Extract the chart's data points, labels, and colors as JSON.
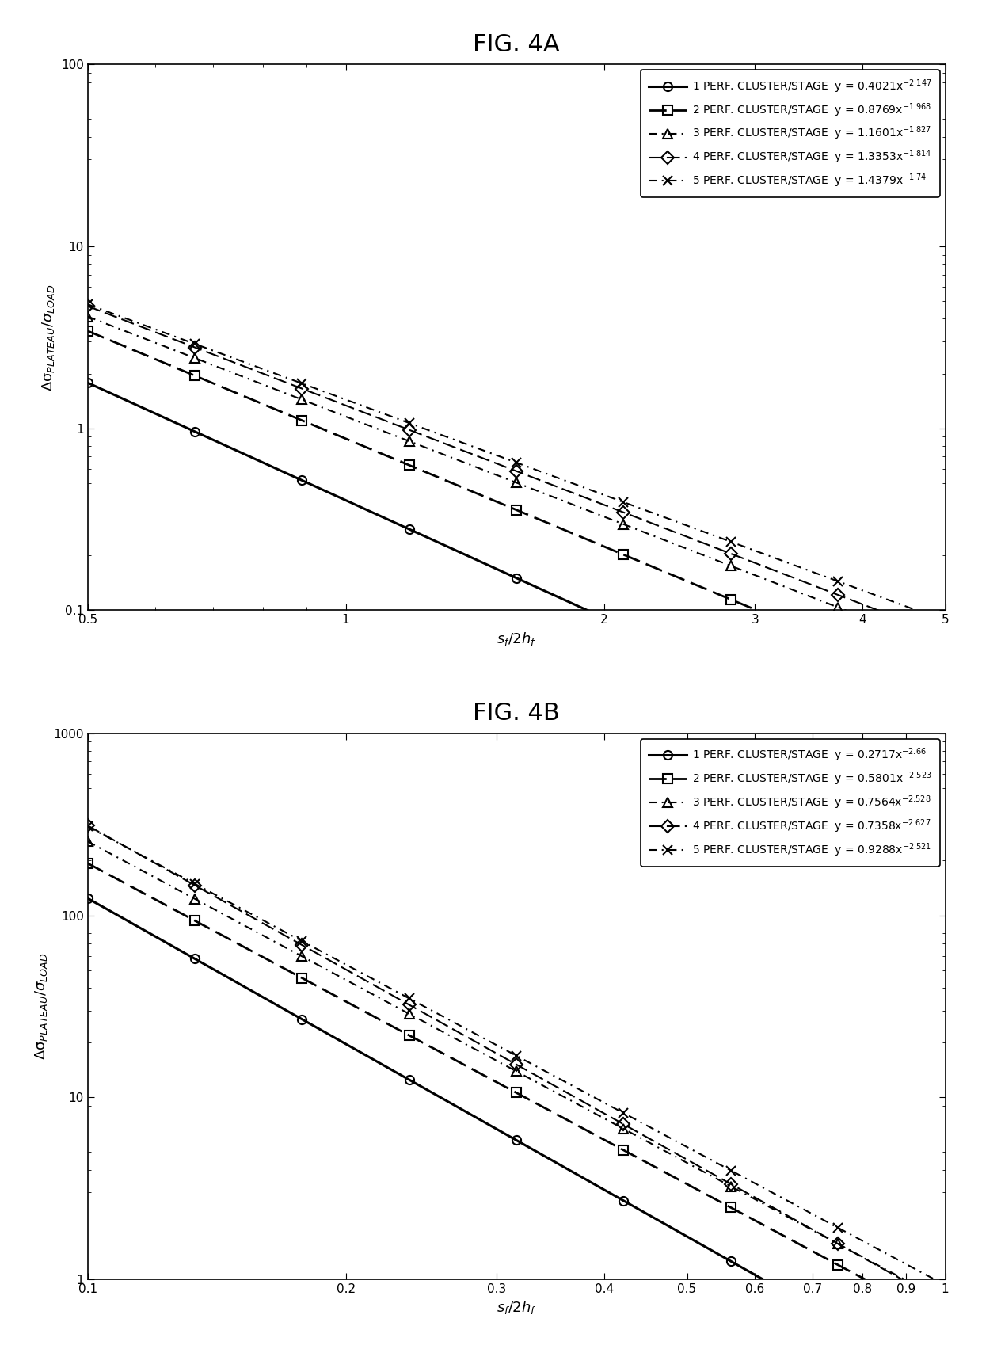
{
  "fig_title_a": "FIG. 4A",
  "fig_title_b": "FIG. 4B",
  "xlabel_a": "$s_f/2h_f$",
  "xlabel_b": "$s_f/2h_f$",
  "ylabel": "Δσ$_{PLATEAU}$/$σ$$_{LOAD}$",
  "plot_a": {
    "xmin": 0.5,
    "xmax": 5.0,
    "ymin": 0.1,
    "ymax": 100,
    "xticks": [
      0.5,
      1,
      2,
      3,
      4,
      5
    ],
    "yticks": [
      0.1,
      1,
      10,
      100
    ],
    "series": [
      {
        "label": "1 PERF. CLUSTER/STAGE",
        "eq": "y = 0.4021x",
        "exp_str": "-2.147",
        "coeff": 0.4021,
        "exp": -2.147,
        "linestyle": "solid",
        "marker": "o",
        "linewidth": 2.2,
        "dashes": []
      },
      {
        "label": "2 PERF. CLUSTER/STAGE",
        "eq": "y = 0.8769x",
        "exp_str": "-1.968",
        "coeff": 0.8769,
        "exp": -1.968,
        "linestyle": "dashed",
        "marker": "s",
        "linewidth": 2.0,
        "dashes": [
          8,
          3
        ]
      },
      {
        "label": "3 PERF. CLUSTER/STAGE",
        "eq": "y = 1.1601x",
        "exp_str": "-1.827",
        "coeff": 1.1601,
        "exp": -1.827,
        "linestyle": "dashed",
        "marker": "^",
        "linewidth": 1.5,
        "dashes": [
          5,
          3,
          1,
          3
        ]
      },
      {
        "label": "4 PERF. CLUSTER/STAGE",
        "eq": "y = 1.3353x",
        "exp_str": "-1.814",
        "coeff": 1.3353,
        "exp": -1.814,
        "linestyle": "dashed",
        "marker": "D",
        "linewidth": 1.5,
        "dashes": [
          8,
          3
        ]
      },
      {
        "label": "5 PERF. CLUSTER/STAGE",
        "eq": "y = 1.4379x",
        "exp_str": "-1.74",
        "coeff": 1.4379,
        "exp": -1.74,
        "linestyle": "dashed",
        "marker": "x",
        "linewidth": 1.5,
        "dashes": [
          5,
          3,
          1,
          3
        ]
      }
    ],
    "n_points": 9
  },
  "plot_b": {
    "xmin": 0.1,
    "xmax": 1.0,
    "ymin": 1,
    "ymax": 1000,
    "xticks": [
      0.1,
      0.2,
      0.3,
      0.4,
      0.5,
      0.6,
      0.7,
      0.8,
      0.9,
      1.0
    ],
    "yticks": [
      1,
      10,
      100,
      1000
    ],
    "series": [
      {
        "label": "1 PERF. CLUSTER/STAGE",
        "eq": "y = 0.2717x",
        "exp_str": "-2.66",
        "coeff": 0.2717,
        "exp": -2.66,
        "linestyle": "solid",
        "marker": "o",
        "linewidth": 2.2,
        "dashes": []
      },
      {
        "label": "2 PERF. CLUSTER/STAGE",
        "eq": "y = 0.5801x",
        "exp_str": "-2.523",
        "coeff": 0.5801,
        "exp": -2.523,
        "linestyle": "dashed",
        "marker": "s",
        "linewidth": 2.0,
        "dashes": [
          8,
          3
        ]
      },
      {
        "label": "3 PERF. CLUSTER/STAGE",
        "eq": "y = 0.7564x",
        "exp_str": "-2.528",
        "coeff": 0.7564,
        "exp": -2.528,
        "linestyle": "dashed",
        "marker": "^",
        "linewidth": 1.5,
        "dashes": [
          5,
          3,
          1,
          3
        ]
      },
      {
        "label": "4 PERF. CLUSTER/STAGE",
        "eq": "y = 0.7358x",
        "exp_str": "-2.627",
        "coeff": 0.7358,
        "exp": -2.627,
        "linestyle": "dashed",
        "marker": "D",
        "linewidth": 1.5,
        "dashes": [
          8,
          3
        ]
      },
      {
        "label": "5 PERF. CLUSTER/STAGE",
        "eq": "y = 0.9288x",
        "exp_str": "-2.521",
        "coeff": 0.9288,
        "exp": -2.521,
        "linestyle": "dashed",
        "marker": "x",
        "linewidth": 1.5,
        "dashes": [
          5,
          3,
          1,
          3
        ]
      }
    ],
    "n_points": 9
  },
  "line_color": "#000000",
  "bg_color": "#ffffff",
  "legend_fontsize": 10,
  "axis_fontsize": 13,
  "title_fontsize": 22,
  "tick_fontsize": 11,
  "marker_size": 8
}
